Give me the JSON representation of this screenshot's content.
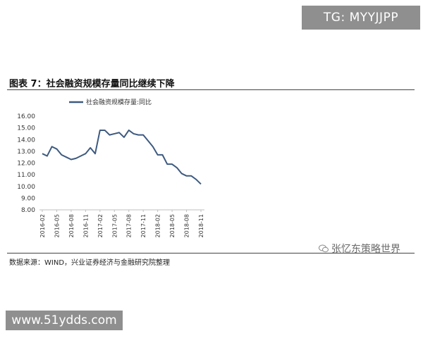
{
  "watermark_top": "TG: MYYJJPP",
  "figure_title": "图表 7：社会融资规模存量同比继续下降",
  "source_note": "数据来源：WIND，兴业证券经济与金融研究院整理",
  "brand": "张忆东策略世界",
  "watermark_bottom": "www.51ydds.com",
  "colors": {
    "line": "#3d5a80",
    "axis": "#bfbfbf",
    "text": "#333333"
  },
  "chart_data": {
    "type": "line",
    "title": "",
    "legend_position": "top-left",
    "xlabel": "",
    "ylabel": "",
    "ylim": [
      8,
      16
    ],
    "yticks": [
      "16.00",
      "15.00",
      "14.00",
      "13.00",
      "12.00",
      "11.00",
      "10.00",
      "9.00",
      "8.00"
    ],
    "grid": false,
    "categories": [
      "2016-02",
      "2016-03",
      "2016-04",
      "2016-05",
      "2016-06",
      "2016-07",
      "2016-08",
      "2016-09",
      "2016-10",
      "2016-11",
      "2016-12",
      "2017-01",
      "2017-02",
      "2017-03",
      "2017-04",
      "2017-05",
      "2017-06",
      "2017-07",
      "2017-08",
      "2017-09",
      "2017-10",
      "2017-11",
      "2017-12",
      "2018-01",
      "2018-02",
      "2018-03",
      "2018-04",
      "2018-05",
      "2018-06",
      "2018-07",
      "2018-08",
      "2018-09",
      "2018-10",
      "2018-11"
    ],
    "xticks_shown": [
      "2016-02",
      "2016-05",
      "2016-08",
      "2016-11",
      "2017-02",
      "2017-05",
      "2017-08",
      "2017-11",
      "2018-02",
      "2018-05",
      "2018-08",
      "2018-11"
    ],
    "series": [
      {
        "name": "社会融资规模存量:同比",
        "values": [
          12.8,
          12.6,
          13.4,
          13.2,
          12.7,
          12.5,
          12.3,
          12.4,
          12.6,
          12.8,
          13.3,
          12.8,
          14.8,
          14.8,
          14.4,
          14.5,
          14.6,
          14.2,
          14.8,
          14.5,
          14.4,
          14.4,
          13.9,
          13.4,
          12.7,
          12.7,
          11.9,
          11.9,
          11.6,
          11.1,
          10.9,
          10.9,
          10.6,
          10.2
        ]
      }
    ]
  }
}
